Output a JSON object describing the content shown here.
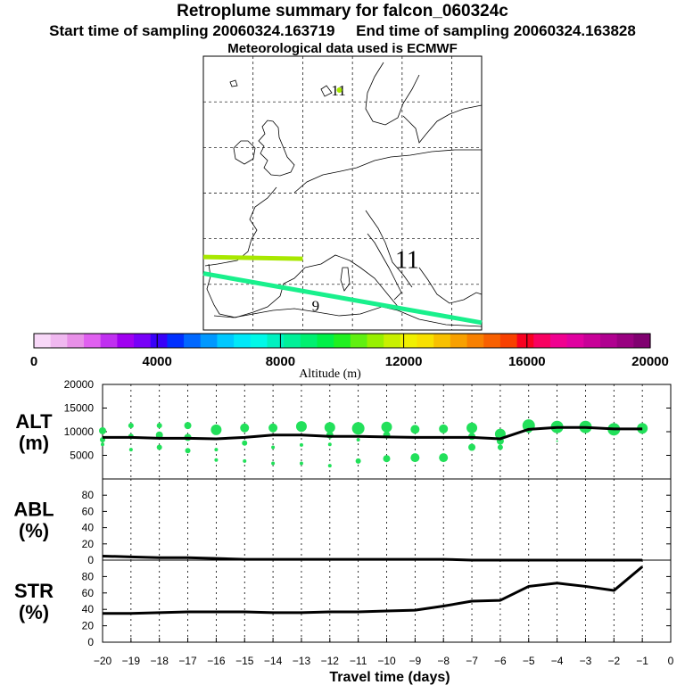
{
  "header": {
    "title": "Retroplume summary for falcon_060324c",
    "start_label": "Start time of sampling 20060324.163719",
    "end_label": "End time of sampling 20060324.163828",
    "met_label": "Meteorological data used is ECMWF"
  },
  "colors": {
    "track_green": "#a8e800",
    "track_cyan": "#19f08c",
    "cloud_green": "#22e05a",
    "curve": "#000000"
  },
  "chart_data": [
    {
      "type": "map",
      "name": "retroplume-map",
      "map_labels": [
        {
          "text": "11",
          "lon": 3.6,
          "lat": 60.7,
          "color": "#a8e800"
        },
        {
          "text": "11",
          "lon": 10.5,
          "lat": 41.8,
          "color": "#000000"
        },
        {
          "text": "9",
          "lon": 1.3,
          "lat": 37.1,
          "color": "#000000"
        }
      ],
      "tracks": [
        {
          "name": "track-green",
          "color": "#a8e800",
          "points": [
            [
              -10,
              43.0
            ],
            [
              0,
              42.8
            ]
          ]
        },
        {
          "name": "track-cyan",
          "color": "#19f08c",
          "points": [
            [
              -10,
              41.2
            ],
            [
              18,
              35.8
            ]
          ]
        }
      ],
      "lon_range": [
        -10,
        18
      ],
      "lat_range": [
        35,
        65
      ]
    },
    {
      "type": "colorbar",
      "xlabel": "Altitude (m)",
      "range": [
        0,
        20000
      ],
      "ticks": [
        0,
        4000,
        8000,
        12000,
        16000,
        20000
      ],
      "tick_labels": [
        "0",
        "4000",
        "8000",
        "12000",
        "16000",
        "20000"
      ],
      "colors": [
        "#f8d8f8",
        "#f0b8f0",
        "#e890e8",
        "#e060f0",
        "#c030f0",
        "#a000f0",
        "#7800f8",
        "#3800f8",
        "#0030ff",
        "#0068ff",
        "#0098ff",
        "#00c8ff",
        "#00e8f8",
        "#00f8e8",
        "#00f0c0",
        "#00f098",
        "#00f070",
        "#00f048",
        "#20f020",
        "#60f010",
        "#98f000",
        "#c8f000",
        "#f0f000",
        "#f8e000",
        "#f8c000",
        "#f8a000",
        "#f88000",
        "#f86000",
        "#f84000",
        "#f80020",
        "#f80060",
        "#f00090",
        "#e000a0",
        "#c80098",
        "#b00090",
        "#980080",
        "#800070"
      ]
    },
    {
      "type": "line",
      "name": "altitude-panel",
      "ylabel": "ALT\n(m)",
      "ylabel_lines": [
        "ALT",
        "(m)"
      ],
      "ylim": [
        0,
        20000
      ],
      "yticks": [
        5000,
        10000,
        15000,
        20000
      ],
      "ytick_labels": [
        "5000",
        "10000",
        "15000",
        "20000"
      ],
      "x": [
        -20,
        -19,
        -18,
        -17,
        -16,
        -15,
        -14,
        -13,
        -12,
        -11,
        -10,
        -9,
        -8,
        -7,
        -6,
        -5,
        -4,
        -3,
        -2,
        -1
      ],
      "series": [
        {
          "name": "mean-altitude",
          "values": [
            8800,
            8800,
            8600,
            8600,
            8500,
            8800,
            9300,
            9300,
            9000,
            9000,
            8900,
            8800,
            8800,
            8800,
            8500,
            10500,
            10900,
            10900,
            10600,
            10600
          ]
        }
      ],
      "scatter": [
        {
          "x": -20,
          "y": 10200,
          "r": 4
        },
        {
          "x": -20,
          "y": 8300,
          "r": 3
        },
        {
          "x": -20,
          "y": 7300,
          "r": 2
        },
        {
          "x": -19,
          "y": 11300,
          "r": 3
        },
        {
          "x": -19,
          "y": 9000,
          "r": 3
        },
        {
          "x": -19,
          "y": 6200,
          "r": 2
        },
        {
          "x": -18,
          "y": 11300,
          "r": 3
        },
        {
          "x": -18,
          "y": 9300,
          "r": 4
        },
        {
          "x": -18,
          "y": 6700,
          "r": 3
        },
        {
          "x": -17,
          "y": 11300,
          "r": 4
        },
        {
          "x": -17,
          "y": 8800,
          "r": 4
        },
        {
          "x": -17,
          "y": 6000,
          "r": 3
        },
        {
          "x": -16,
          "y": 10400,
          "r": 6
        },
        {
          "x": -16,
          "y": 6200,
          "r": 2
        },
        {
          "x": -16,
          "y": 4000,
          "r": 2
        },
        {
          "x": -15,
          "y": 10800,
          "r": 5
        },
        {
          "x": -15,
          "y": 7600,
          "r": 3
        },
        {
          "x": -15,
          "y": 3800,
          "r": 2
        },
        {
          "x": -14,
          "y": 10800,
          "r": 5
        },
        {
          "x": -14,
          "y": 6700,
          "r": 2
        },
        {
          "x": -14,
          "y": 3300,
          "r": 2
        },
        {
          "x": -13,
          "y": 11100,
          "r": 6
        },
        {
          "x": -13,
          "y": 7200,
          "r": 2
        },
        {
          "x": -13,
          "y": 3300,
          "r": 2
        },
        {
          "x": -12,
          "y": 10900,
          "r": 6
        },
        {
          "x": -12,
          "y": 9300,
          "r": 4
        },
        {
          "x": -12,
          "y": 7300,
          "r": 2
        },
        {
          "x": -12,
          "y": 2800,
          "r": 2
        },
        {
          "x": -11,
          "y": 10700,
          "r": 7
        },
        {
          "x": -11,
          "y": 8300,
          "r": 2
        },
        {
          "x": -11,
          "y": 3800,
          "r": 3
        },
        {
          "x": -10,
          "y": 11000,
          "r": 6
        },
        {
          "x": -10,
          "y": 9300,
          "r": 4
        },
        {
          "x": -10,
          "y": 4300,
          "r": 4
        },
        {
          "x": -9,
          "y": 10500,
          "r": 5
        },
        {
          "x": -9,
          "y": 4500,
          "r": 5
        },
        {
          "x": -8,
          "y": 10600,
          "r": 5
        },
        {
          "x": -8,
          "y": 4500,
          "r": 5
        },
        {
          "x": -7,
          "y": 10800,
          "r": 6
        },
        {
          "x": -7,
          "y": 9000,
          "r": 4
        },
        {
          "x": -7,
          "y": 6700,
          "r": 4
        },
        {
          "x": -6,
          "y": 9500,
          "r": 6
        },
        {
          "x": -6,
          "y": 8000,
          "r": 4
        },
        {
          "x": -6,
          "y": 6700,
          "r": 3
        },
        {
          "x": -5,
          "y": 11300,
          "r": 7
        },
        {
          "x": -5,
          "y": 10500,
          "r": 4
        },
        {
          "x": -4,
          "y": 11000,
          "r": 7
        },
        {
          "x": -4,
          "y": 8000,
          "r": 1
        },
        {
          "x": -3,
          "y": 11000,
          "r": 7
        },
        {
          "x": -2,
          "y": 10500,
          "r": 7
        },
        {
          "x": -1,
          "y": 10700,
          "r": 6
        }
      ]
    },
    {
      "type": "line",
      "name": "abl-panel",
      "ylabel": "ABL\n(%)",
      "ylabel_lines": [
        "ABL",
        "(%)"
      ],
      "ylim": [
        0,
        100
      ],
      "yticks": [
        0,
        20,
        40,
        60,
        80
      ],
      "ytick_labels": [
        "0",
        "20",
        "40",
        "60",
        "80"
      ],
      "x": [
        -20,
        -19,
        -18,
        -17,
        -16,
        -15,
        -14,
        -13,
        -12,
        -11,
        -10,
        -9,
        -8,
        -7,
        -6,
        -5,
        -4,
        -3,
        -2,
        -1
      ],
      "series": [
        {
          "name": "abl-fraction",
          "values": [
            5,
            4,
            3,
            3,
            2,
            1,
            1,
            1,
            1,
            1,
            1,
            1,
            1,
            0,
            0,
            0,
            0,
            0,
            0,
            0
          ]
        }
      ]
    },
    {
      "type": "line",
      "name": "str-panel",
      "ylabel": "STR\n(%)",
      "ylabel_lines": [
        "STR",
        "(%)"
      ],
      "ylim": [
        0,
        100
      ],
      "yticks": [
        0,
        20,
        40,
        60,
        80
      ],
      "ytick_labels": [
        "0",
        "20",
        "40",
        "60",
        "80"
      ],
      "xlabel": "Travel time (days)",
      "xlim": [
        -20,
        0
      ],
      "xticks": [
        -20,
        -19,
        -18,
        -17,
        -16,
        -15,
        -14,
        -13,
        -12,
        -11,
        -10,
        -9,
        -8,
        -7,
        -6,
        -5,
        -4,
        -3,
        -2,
        -1,
        0
      ],
      "xtick_labels": [
        "−20",
        "−19",
        "−18",
        "−17",
        "−16",
        "−15",
        "−14",
        "−13",
        "−12",
        "−11",
        "−10",
        "−9",
        "−8",
        "−7",
        "−6",
        "−5",
        "−4",
        "−3",
        "−2",
        "−1",
        "0"
      ],
      "x": [
        -20,
        -19,
        -18,
        -17,
        -16,
        -15,
        -14,
        -13,
        -12,
        -11,
        -10,
        -9,
        -8,
        -7,
        -6,
        -5,
        -4,
        -3,
        -2,
        -1
      ],
      "series": [
        {
          "name": "str-fraction",
          "values": [
            35,
            35,
            36,
            37,
            37,
            37,
            36,
            36,
            37,
            37,
            38,
            39,
            44,
            50,
            51,
            68,
            72,
            68,
            63,
            92
          ]
        }
      ]
    }
  ]
}
